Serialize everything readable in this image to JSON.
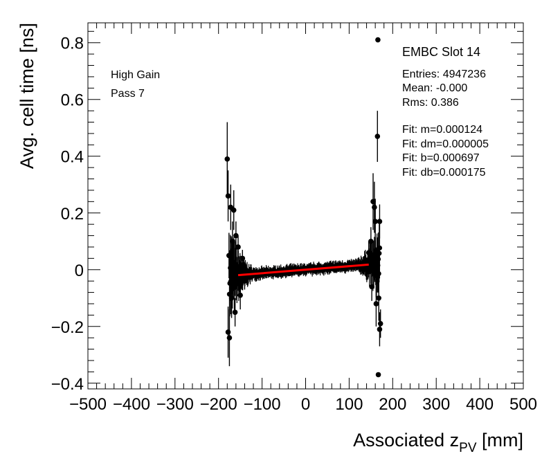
{
  "chart_data": {
    "type": "scatter",
    "xlabel": "Associated z",
    "xlabel_sub": "PV",
    "xlabel_unit": " [mm]",
    "ylabel": "Avg. cell time [ns]",
    "xlim": [
      -500,
      500
    ],
    "ylim": [
      -0.42,
      0.87
    ],
    "x_ticks": [
      -500,
      -400,
      -300,
      -200,
      -100,
      0,
      100,
      200,
      300,
      400,
      500
    ],
    "x_tick_labels": [
      "−500",
      "−400",
      "−300",
      "−200",
      "−100",
      "0",
      "100",
      "200",
      "300",
      "400",
      "500"
    ],
    "y_ticks": [
      -0.4,
      -0.2,
      0,
      0.2,
      0.4,
      0.6,
      0.8
    ],
    "y_tick_labels": [
      "−0.4",
      "−0.2",
      "0",
      "0.2",
      "0.4",
      "0.6",
      "0.8"
    ],
    "grid": false,
    "annotations_left": [
      "High Gain",
      "Pass 7"
    ],
    "stats_title": "EMBC Slot 14",
    "stats": [
      "Entries: 4947236",
      "Mean: -0.000",
      "Rms: 0.386",
      "",
      "Fit: m=0.000124",
      "Fit: dm=0.000005",
      "Fit: b=0.000697",
      "Fit: db=0.000175"
    ],
    "fit": {
      "m": 0.000124,
      "b": 0.000697,
      "x_range": [
        -155,
        145
      ],
      "color": "#ff0000"
    },
    "marker_color": "#000000",
    "outliers": [
      {
        "x": -180,
        "y": 0.39,
        "err": 0.13
      },
      {
        "x": -178,
        "y": 0.26,
        "err": 0.09
      },
      {
        "x": -176,
        "y": 0.05,
        "err": 0.08
      },
      {
        "x": -178,
        "y": -0.22,
        "err": 0.09
      },
      {
        "x": -175,
        "y": -0.24,
        "err": 0.1
      },
      {
        "x": -172,
        "y": 0.22,
        "err": 0.08
      },
      {
        "x": -168,
        "y": 0.1,
        "err": 0.07
      },
      {
        "x": -165,
        "y": 0.21,
        "err": 0.07
      },
      {
        "x": -170,
        "y": -0.1,
        "err": 0.07
      },
      {
        "x": -162,
        "y": -0.15,
        "err": 0.05
      },
      {
        "x": -160,
        "y": 0.12,
        "err": 0.05
      },
      {
        "x": -155,
        "y": 0.08,
        "err": 0.04
      },
      {
        "x": -150,
        "y": -0.09,
        "err": 0.05
      },
      {
        "x": -145,
        "y": 0.04,
        "err": 0.03
      },
      {
        "x": -140,
        "y": -0.04,
        "err": 0.03
      },
      {
        "x": 145,
        "y": 0.06,
        "err": 0.04
      },
      {
        "x": 150,
        "y": 0.1,
        "err": 0.05
      },
      {
        "x": 152,
        "y": -0.06,
        "err": 0.05
      },
      {
        "x": 155,
        "y": 0.24,
        "err": 0.1
      },
      {
        "x": 158,
        "y": 0.22,
        "err": 0.09
      },
      {
        "x": 160,
        "y": 0.17,
        "err": 0.08
      },
      {
        "x": 162,
        "y": -0.12,
        "err": 0.08
      },
      {
        "x": 165,
        "y": 0.47,
        "err": 0.09
      },
      {
        "x": 166,
        "y": 0.81,
        "err": 0.0
      },
      {
        "x": 167,
        "y": -0.37,
        "err": 0.0
      },
      {
        "x": 168,
        "y": -0.1,
        "err": 0.08
      },
      {
        "x": 170,
        "y": -0.21,
        "err": 0.06
      },
      {
        "x": 172,
        "y": -0.19,
        "err": 0.05
      },
      {
        "x": 170,
        "y": 0.17,
        "err": 0.06
      }
    ],
    "dense_band": {
      "x_range": [
        -175,
        170
      ],
      "n_points": 340
    }
  }
}
